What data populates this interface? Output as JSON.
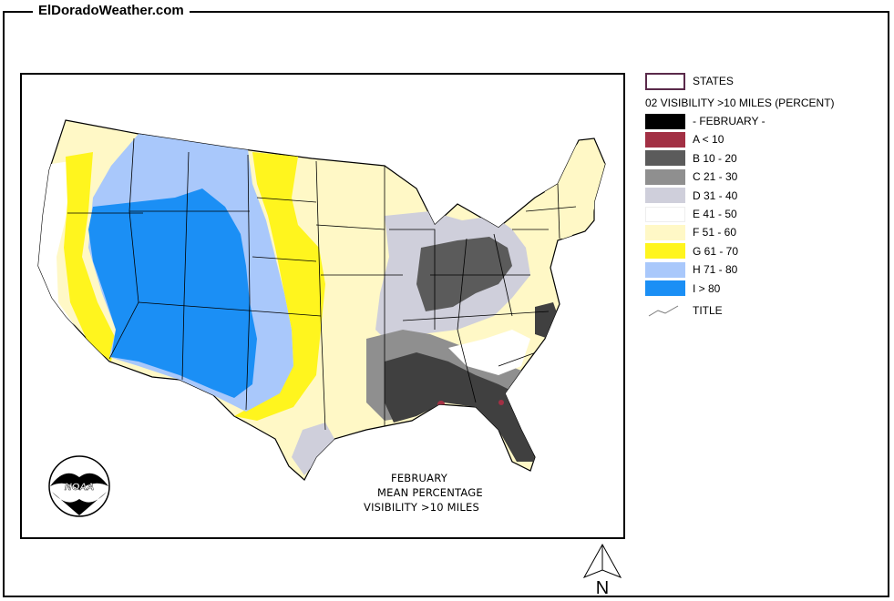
{
  "site_title": "ElDoradoWeather.com",
  "caption": {
    "line1": "FEBRUARY",
    "line2": "MEAN PERCENTAGE",
    "line3": "VISIBILITY >10 MILES"
  },
  "logo": {
    "text": "NOAA"
  },
  "legend": {
    "states_label": "STATES",
    "layer_title": "02 VISIBILITY >10 MILES (PERCENT)",
    "items": [
      {
        "label": "- FEBRUARY -",
        "color": "#000000"
      },
      {
        "label": "A < 10",
        "color": "#a23044"
      },
      {
        "label": "B 10 - 20",
        "color": "#5b5b5b"
      },
      {
        "label": "C 21 - 30",
        "color": "#8f8f8f"
      },
      {
        "label": "D 31 - 40",
        "color": "#cfcfdb"
      },
      {
        "label": "E 41 - 50",
        "color": "#ffffff"
      },
      {
        "label": "F 51 - 60",
        "color": "#fff8c6"
      },
      {
        "label": "G 61 - 70",
        "color": "#fff51e"
      },
      {
        "label": "H 71 - 80",
        "color": "#a9c8fb"
      },
      {
        "label": "I > 80",
        "color": "#1b8ff5"
      }
    ],
    "title_label": "TITLE"
  },
  "compass": {
    "label": "N"
  }
}
